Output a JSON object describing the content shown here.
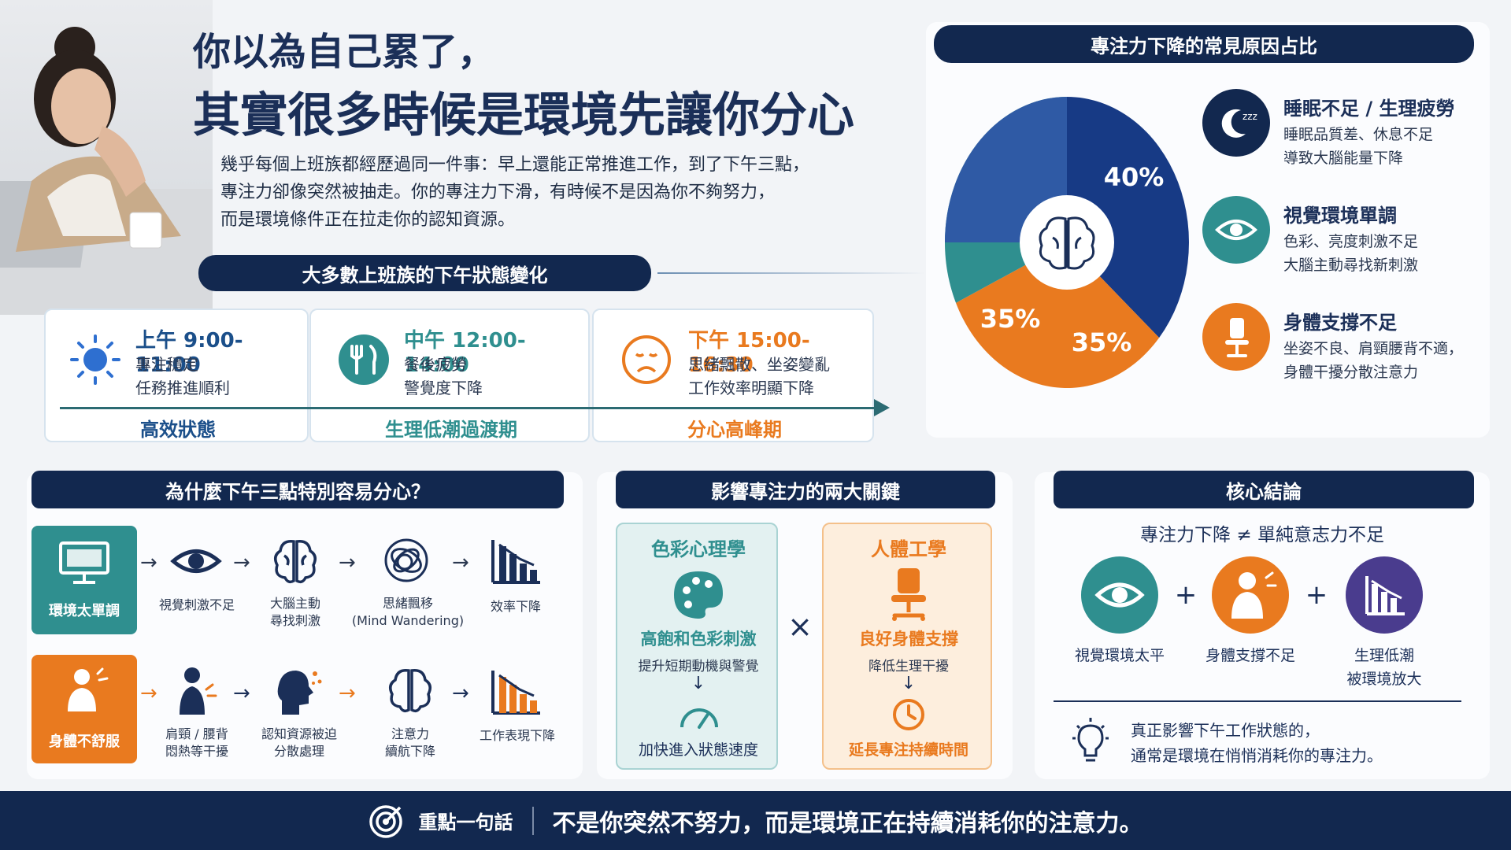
{
  "header": {
    "title_line1": "你以為自己累了，",
    "title_line2": "其實很多時候是環境先讓你分心",
    "intro_lines": [
      "幾乎每個上班族都經歷過同一件事：早上還能正常推進工作，到了下午三點，",
      "專注力卻像突然被抽走。你的專注力下滑，有時候不是因為你不夠努力，",
      "而是環境條件正在拉走你的認知資源。"
    ]
  },
  "timeline": {
    "heading": "大多數上班族的下午狀態變化",
    "phases": [
      {
        "time": "上午 9:00-11:00",
        "desc1": "專注穩定",
        "desc2": "任務推進順利",
        "state": "高效狀態",
        "icon": "sun-icon"
      },
      {
        "time": "中午 12:00-14:00",
        "desc1": "餐後疲勞",
        "desc2": "警覺度下降",
        "state": "生理低潮過渡期",
        "icon": "utensils-icon"
      },
      {
        "time": "下午 15:00-16:30",
        "desc1": "思緒飄散、坐姿變亂",
        "desc2": "工作效率明顯下降",
        "state": "分心高峰期",
        "icon": "sad-face-icon"
      }
    ]
  },
  "pie": {
    "heading": "專注力下降的常見原因占比",
    "labels": [
      "40%",
      "35%",
      "35%"
    ],
    "legend": [
      {
        "title": "睡眠不足 / 生理疲勞",
        "desc1": "睡眠品質差、休息不足",
        "desc2": "導致大腦能量下降",
        "color": "#173a85",
        "icon": "moon-sleep-icon"
      },
      {
        "title": "視覺環境單調",
        "desc1": "色彩、亮度刺激不足",
        "desc2": "大腦主動尋找新刺激",
        "color": "#2f8f8f",
        "icon": "eye-icon"
      },
      {
        "title": "身體支撐不足",
        "desc1": "坐姿不良、肩頸腰背不適，",
        "desc2": "身體干擾分散注意力",
        "color": "#e97a1f",
        "icon": "chair-icon"
      }
    ]
  },
  "chart_data": {
    "type": "pie",
    "title": "專注力下降的常見原因占比",
    "slices": [
      {
        "label": "睡眠不足 / 生理疲勞",
        "value": 40,
        "display": "40%",
        "color": "#173a85"
      },
      {
        "label": "視覺環境單調",
        "value": 35,
        "display": "35%",
        "color": "#2f8f8f"
      },
      {
        "label": "身體支撐不足",
        "value": 35,
        "display": "35%",
        "color": "#e97a1f"
      }
    ]
  },
  "why": {
    "heading": "為什麼下午三點特別容易分心？",
    "row1": {
      "lead": "環境太單調",
      "steps": [
        {
          "l1": "視覺刺激不足",
          "l2": ""
        },
        {
          "l1": "大腦主動",
          "l2": "尋找刺激"
        },
        {
          "l1": "思緒飄移",
          "l2": "(Mind Wandering)"
        },
        {
          "l1": "效率下降",
          "l2": ""
        }
      ]
    },
    "row2": {
      "lead": "身體不舒服",
      "steps": [
        {
          "l1": "肩頸 / 腰背",
          "l2": "悶熱等干擾"
        },
        {
          "l1": "認知資源被迫",
          "l2": "分散處理"
        },
        {
          "l1": "注意力",
          "l2": "續航下降"
        },
        {
          "l1": "工作表現下降",
          "l2": ""
        }
      ]
    },
    "arrow": "→"
  },
  "keys": {
    "heading": "影響專注力的兩大關鍵",
    "left": {
      "title": "色彩心理學",
      "sub": "高飽和色彩刺激",
      "desc": "提升短期動機與警覺",
      "result": "加快進入狀態速度"
    },
    "times": "×",
    "right": {
      "title": "人體工學",
      "sub": "良好身體支撐",
      "desc": "降低生理干擾",
      "result": "延長專注持續時間"
    },
    "down": "↓"
  },
  "conclusion": {
    "heading": "核心結論",
    "formula": "專注力下降 ≠ 單純意志力不足",
    "items": [
      {
        "l1": "視覺環境太平",
        "l2": ""
      },
      {
        "l1": "身體支撐不足",
        "l2": ""
      },
      {
        "l1": "生理低潮",
        "l2": "被環境放大"
      }
    ],
    "plus": "+",
    "note1": "真正影響下午工作狀態的，",
    "note2": "通常是環境在悄悄消耗你的專注力。"
  },
  "footer": {
    "label": "重點一句話",
    "message": "不是你突然不努力，而是環境正在持續消耗你的注意力。"
  },
  "colors": {
    "navy": "#12284f",
    "blue": "#173a85",
    "teal": "#2f8f8f",
    "orange": "#e97a1f",
    "purple": "#4a3c8e"
  }
}
